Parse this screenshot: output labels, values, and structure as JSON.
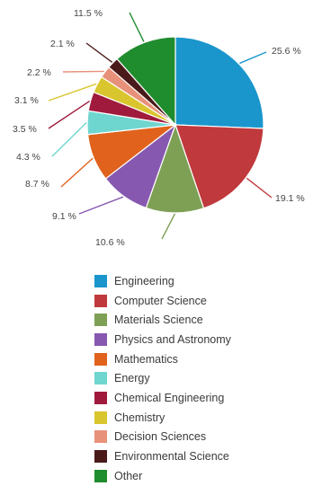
{
  "chart_data": {
    "type": "pie",
    "title": "",
    "categories": [
      "Engineering",
      "Computer Science",
      "Materials Science",
      "Physics and Astronomy",
      "Mathematics",
      "Energy",
      "Chemical Engineering",
      "Chemistry",
      "Decision Sciences",
      "Environmental Science",
      "Other"
    ],
    "values": [
      25.6,
      19.1,
      10.6,
      9.1,
      8.7,
      4.3,
      3.5,
      3.1,
      2.2,
      2.1,
      11.5
    ],
    "labels": [
      "25.6 %",
      "19.1 %",
      "10.6 %",
      "9.1 %",
      "8.7 %",
      "4.3 %",
      "3.5 %",
      "3.1 %",
      "2.2 %",
      "2.1 %",
      "11.5 %"
    ],
    "colors": [
      "#1a96cc",
      "#c0393c",
      "#7ea055",
      "#8658b0",
      "#e0621c",
      "#6fd6cf",
      "#a01a3d",
      "#d9c52e",
      "#e8917a",
      "#4a1a1a",
      "#1f8c2e"
    ],
    "legend_position": "bottom"
  }
}
